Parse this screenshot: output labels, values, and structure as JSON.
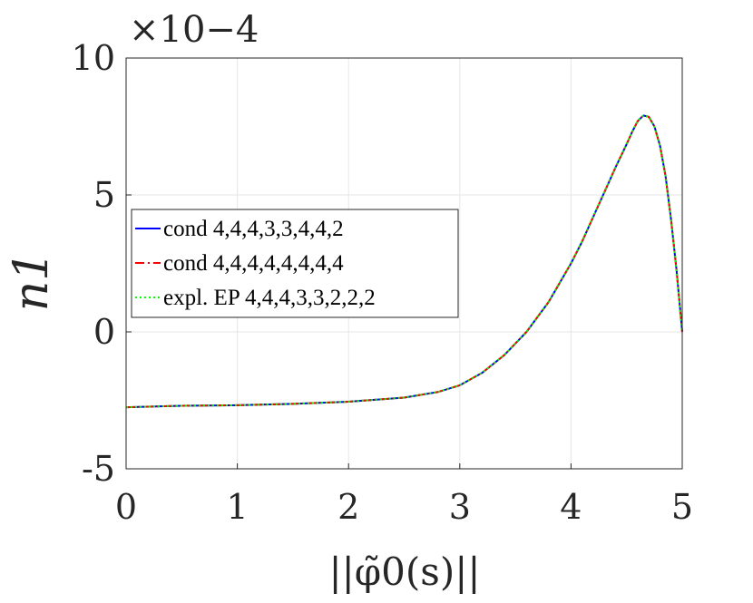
{
  "chart_data": {
    "type": "line",
    "title": "",
    "xlabel": "||φ̃0(s)||",
    "ylabel": "n1",
    "exponent_label": "×10−4",
    "xlim": [
      0,
      5
    ],
    "ylim": [
      -5,
      10
    ],
    "xticks": [
      "0",
      "1",
      "2",
      "3",
      "4",
      "5"
    ],
    "yticks": [
      "-5",
      "0",
      "5",
      "10"
    ],
    "grid": true,
    "legend_position": "middle-left",
    "series": [
      {
        "name": "cond 4,4,4,3,3,4,4,2",
        "color": "#0000ff",
        "style": "solid",
        "x": [
          0,
          0.5,
          1.0,
          1.5,
          2.0,
          2.5,
          2.8,
          3.0,
          3.2,
          3.4,
          3.6,
          3.8,
          4.0,
          4.1,
          4.2,
          4.3,
          4.4,
          4.5,
          4.55,
          4.6,
          4.65,
          4.7,
          4.75,
          4.8,
          4.85,
          4.9,
          4.95,
          4.98,
          5.0
        ],
        "y": [
          -2.75,
          -2.7,
          -2.68,
          -2.63,
          -2.55,
          -2.4,
          -2.2,
          -1.95,
          -1.5,
          -0.85,
          0.0,
          1.1,
          2.5,
          3.3,
          4.2,
          5.1,
          6.0,
          6.85,
          7.3,
          7.7,
          7.9,
          7.85,
          7.5,
          6.8,
          5.7,
          4.1,
          2.2,
          0.9,
          0.0
        ]
      },
      {
        "name": "cond 4,4,4,4,4,4,4,4",
        "color": "#ff0000",
        "style": "dashdot",
        "x": [
          0,
          0.5,
          1.0,
          1.5,
          2.0,
          2.5,
          2.8,
          3.0,
          3.2,
          3.4,
          3.6,
          3.8,
          4.0,
          4.1,
          4.2,
          4.3,
          4.4,
          4.5,
          4.55,
          4.6,
          4.65,
          4.7,
          4.75,
          4.8,
          4.85,
          4.9,
          4.95,
          4.98,
          5.0
        ],
        "y": [
          -2.75,
          -2.7,
          -2.68,
          -2.63,
          -2.55,
          -2.4,
          -2.2,
          -1.95,
          -1.5,
          -0.85,
          0.0,
          1.1,
          2.5,
          3.3,
          4.2,
          5.1,
          6.0,
          6.85,
          7.3,
          7.7,
          7.9,
          7.85,
          7.5,
          6.8,
          5.7,
          4.1,
          2.2,
          0.9,
          0.0
        ]
      },
      {
        "name": "expl. EP 4,4,4,3,3,2,2,2",
        "color": "#00ff00",
        "style": "dotted",
        "x": [
          0,
          0.5,
          1.0,
          1.5,
          2.0,
          2.5,
          2.8,
          3.0,
          3.2,
          3.4,
          3.6,
          3.8,
          4.0,
          4.1,
          4.2,
          4.3,
          4.4,
          4.5,
          4.55,
          4.6,
          4.65,
          4.7,
          4.75,
          4.8,
          4.85,
          4.9,
          4.95,
          4.98,
          5.0
        ],
        "y": [
          -2.75,
          -2.7,
          -2.68,
          -2.63,
          -2.55,
          -2.4,
          -2.2,
          -1.95,
          -1.5,
          -0.85,
          0.0,
          1.1,
          2.5,
          3.3,
          4.2,
          5.1,
          6.0,
          6.85,
          7.3,
          7.7,
          7.9,
          7.85,
          7.5,
          6.8,
          5.7,
          4.1,
          2.2,
          0.9,
          0.0
        ]
      }
    ]
  }
}
